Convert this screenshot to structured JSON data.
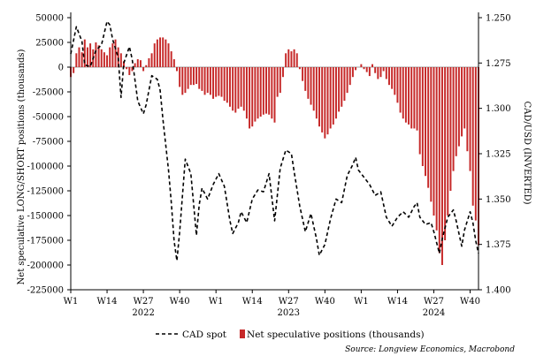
{
  "chart_data": {
    "type": "bar+line",
    "y_left": {
      "label": "Net speculative LONG/SHORT positions (thousands)",
      "ticks": [
        50000,
        25000,
        0,
        -25000,
        -50000,
        -75000,
        -100000,
        -125000,
        -150000,
        -175000,
        -200000,
        -225000
      ],
      "tick_labels": [
        "50000",
        "25000",
        "0",
        "-25000",
        "-50000",
        "-75000",
        "-100000",
        "-125000",
        "-150000",
        "-175000",
        "-200000",
        "-225000"
      ],
      "range": [
        -225000,
        50000
      ]
    },
    "y_right": {
      "label": "CAD/USD (INVERTED)",
      "inverted": true,
      "ticks": [
        1.25,
        1.275,
        1.3,
        1.325,
        1.35,
        1.375,
        1.4
      ],
      "tick_labels": [
        "1.250",
        "1.275",
        "1.300",
        "1.325",
        "1.350",
        "1.375",
        "1.400"
      ],
      "range": [
        1.25,
        1.4
      ]
    },
    "x_axis": {
      "week_range": [
        1,
        147
      ],
      "ticks": [
        {
          "week": 1,
          "label": "W1"
        },
        {
          "week": 14,
          "label": "W14"
        },
        {
          "week": 27,
          "label": "W27"
        },
        {
          "week": 40,
          "label": "W40"
        },
        {
          "week": 53,
          "label": "W1"
        },
        {
          "week": 66,
          "label": "W14"
        },
        {
          "week": 79,
          "label": "W27"
        },
        {
          "week": 92,
          "label": "W40"
        },
        {
          "week": 105,
          "label": "W1"
        },
        {
          "week": 118,
          "label": "W14"
        },
        {
          "week": 131,
          "label": "W27"
        },
        {
          "week": 144,
          "label": "W40"
        }
      ],
      "years": [
        {
          "week": 27,
          "label": "2022"
        },
        {
          "week": 79,
          "label": "2023"
        },
        {
          "week": 131,
          "label": "2024"
        }
      ]
    },
    "series": [
      {
        "name": "CAD spot",
        "type": "line",
        "axis": "right",
        "style": "dashed",
        "color": "#000000",
        "points": [
          [
            1,
            1.27
          ],
          [
            3,
            1.255
          ],
          [
            5,
            1.263
          ],
          [
            6,
            1.276
          ],
          [
            8,
            1.277
          ],
          [
            10,
            1.268
          ],
          [
            12,
            1.265
          ],
          [
            14,
            1.252
          ],
          [
            15,
            1.254
          ],
          [
            16,
            1.262
          ],
          [
            18,
            1.272
          ],
          [
            19,
            1.294
          ],
          [
            20,
            1.275
          ],
          [
            22,
            1.266
          ],
          [
            23,
            1.273
          ],
          [
            25,
            1.296
          ],
          [
            27,
            1.303
          ],
          [
            28,
            1.298
          ],
          [
            30,
            1.282
          ],
          [
            32,
            1.284
          ],
          [
            33,
            1.29
          ],
          [
            34,
            1.306
          ],
          [
            36,
            1.334
          ],
          [
            37,
            1.352
          ],
          [
            38,
            1.373
          ],
          [
            39,
            1.384
          ],
          [
            40,
            1.368
          ],
          [
            42,
            1.328
          ],
          [
            44,
            1.336
          ],
          [
            46,
            1.37
          ],
          [
            47,
            1.353
          ],
          [
            48,
            1.344
          ],
          [
            50,
            1.35
          ],
          [
            52,
            1.342
          ],
          [
            54,
            1.336
          ],
          [
            56,
            1.343
          ],
          [
            58,
            1.362
          ],
          [
            59,
            1.369
          ],
          [
            61,
            1.363
          ],
          [
            62,
            1.357
          ],
          [
            64,
            1.363
          ],
          [
            66,
            1.35
          ],
          [
            68,
            1.345
          ],
          [
            70,
            1.346
          ],
          [
            72,
            1.336
          ],
          [
            74,
            1.362
          ],
          [
            76,
            1.333
          ],
          [
            78,
            1.323
          ],
          [
            80,
            1.325
          ],
          [
            81,
            1.335
          ],
          [
            83,
            1.354
          ],
          [
            85,
            1.368
          ],
          [
            87,
            1.358
          ],
          [
            89,
            1.372
          ],
          [
            90,
            1.381
          ],
          [
            92,
            1.375
          ],
          [
            94,
            1.361
          ],
          [
            96,
            1.35
          ],
          [
            98,
            1.352
          ],
          [
            100,
            1.337
          ],
          [
            102,
            1.331
          ],
          [
            103,
            1.327
          ],
          [
            104,
            1.334
          ],
          [
            106,
            1.338
          ],
          [
            108,
            1.342
          ],
          [
            110,
            1.348
          ],
          [
            112,
            1.346
          ],
          [
            114,
            1.36
          ],
          [
            116,
            1.365
          ],
          [
            118,
            1.36
          ],
          [
            120,
            1.357
          ],
          [
            122,
            1.36
          ],
          [
            124,
            1.354
          ],
          [
            125,
            1.352
          ],
          [
            126,
            1.36
          ],
          [
            128,
            1.364
          ],
          [
            130,
            1.363
          ],
          [
            131,
            1.368
          ],
          [
            133,
            1.38
          ],
          [
            134,
            1.372
          ],
          [
            136,
            1.36
          ],
          [
            138,
            1.356
          ],
          [
            139,
            1.362
          ],
          [
            141,
            1.376
          ],
          [
            142,
            1.367
          ],
          [
            144,
            1.357
          ],
          [
            145,
            1.363
          ],
          [
            146,
            1.373
          ],
          [
            147,
            1.38
          ]
        ]
      },
      {
        "name": "Net speculative positions (thousands)",
        "type": "bar",
        "axis": "left",
        "color": "#c62828",
        "points": [
          [
            1,
            -10000
          ],
          [
            2,
            -6000
          ],
          [
            3,
            14000
          ],
          [
            4,
            20000
          ],
          [
            5,
            15000
          ],
          [
            6,
            28000
          ],
          [
            7,
            20000
          ],
          [
            8,
            24000
          ],
          [
            9,
            18000
          ],
          [
            10,
            25000
          ],
          [
            11,
            22000
          ],
          [
            12,
            18000
          ],
          [
            13,
            15000
          ],
          [
            14,
            12000
          ],
          [
            15,
            20000
          ],
          [
            16,
            24000
          ],
          [
            17,
            28000
          ],
          [
            18,
            20000
          ],
          [
            19,
            14000
          ],
          [
            20,
            6000
          ],
          [
            21,
            -2000
          ],
          [
            22,
            -8000
          ],
          [
            23,
            -4000
          ],
          [
            24,
            4000
          ],
          [
            25,
            8000
          ],
          [
            26,
            7000
          ],
          [
            27,
            -4000
          ],
          [
            28,
            2000
          ],
          [
            29,
            9000
          ],
          [
            30,
            14000
          ],
          [
            31,
            24000
          ],
          [
            32,
            28000
          ],
          [
            33,
            30000
          ],
          [
            34,
            30000
          ],
          [
            35,
            28000
          ],
          [
            36,
            24000
          ],
          [
            37,
            16000
          ],
          [
            38,
            8000
          ],
          [
            39,
            -4000
          ],
          [
            40,
            -20000
          ],
          [
            41,
            -28000
          ],
          [
            42,
            -26000
          ],
          [
            43,
            -22000
          ],
          [
            44,
            -18000
          ],
          [
            45,
            -18000
          ],
          [
            46,
            -17000
          ],
          [
            47,
            -22000
          ],
          [
            48,
            -24000
          ],
          [
            49,
            -28000
          ],
          [
            50,
            -26000
          ],
          [
            51,
            -28000
          ],
          [
            52,
            -32000
          ],
          [
            53,
            -30000
          ],
          [
            54,
            -29000
          ],
          [
            55,
            -30000
          ],
          [
            56,
            -34000
          ],
          [
            57,
            -36000
          ],
          [
            58,
            -40000
          ],
          [
            59,
            -44000
          ],
          [
            60,
            -46000
          ],
          [
            61,
            -42000
          ],
          [
            62,
            -40000
          ],
          [
            63,
            -44000
          ],
          [
            64,
            -52000
          ],
          [
            65,
            -62000
          ],
          [
            66,
            -60000
          ],
          [
            67,
            -55000
          ],
          [
            68,
            -52000
          ],
          [
            69,
            -50000
          ],
          [
            70,
            -48000
          ],
          [
            71,
            -47000
          ],
          [
            72,
            -48000
          ],
          [
            73,
            -52000
          ],
          [
            74,
            -56000
          ],
          [
            75,
            -30000
          ],
          [
            76,
            -26000
          ],
          [
            77,
            -10000
          ],
          [
            78,
            14000
          ],
          [
            79,
            18000
          ],
          [
            80,
            16000
          ],
          [
            81,
            18000
          ],
          [
            82,
            14000
          ],
          [
            83,
            -2000
          ],
          [
            84,
            -14000
          ],
          [
            85,
            -24000
          ],
          [
            86,
            -32000
          ],
          [
            87,
            -38000
          ],
          [
            88,
            -44000
          ],
          [
            89,
            -52000
          ],
          [
            90,
            -60000
          ],
          [
            91,
            -66000
          ],
          [
            92,
            -72000
          ],
          [
            93,
            -68000
          ],
          [
            94,
            -62000
          ],
          [
            95,
            -58000
          ],
          [
            96,
            -52000
          ],
          [
            97,
            -45000
          ],
          [
            98,
            -40000
          ],
          [
            99,
            -34000
          ],
          [
            100,
            -26000
          ],
          [
            101,
            -18000
          ],
          [
            102,
            -10000
          ],
          [
            103,
            -3000
          ],
          [
            104,
            0
          ],
          [
            105,
            3000
          ],
          [
            106,
            -2000
          ],
          [
            107,
            -5000
          ],
          [
            108,
            -9000
          ],
          [
            109,
            3000
          ],
          [
            110,
            -6000
          ],
          [
            111,
            -12000
          ],
          [
            112,
            -10000
          ],
          [
            113,
            -4000
          ],
          [
            114,
            -12000
          ],
          [
            115,
            -18000
          ],
          [
            116,
            -22000
          ],
          [
            117,
            -28000
          ],
          [
            118,
            -36000
          ],
          [
            119,
            -46000
          ],
          [
            120,
            -52000
          ],
          [
            121,
            -56000
          ],
          [
            122,
            -58000
          ],
          [
            123,
            -62000
          ],
          [
            124,
            -62000
          ],
          [
            125,
            -64000
          ],
          [
            126,
            -88000
          ],
          [
            127,
            -100000
          ],
          [
            128,
            -110000
          ],
          [
            129,
            -122000
          ],
          [
            130,
            -136000
          ],
          [
            131,
            -150000
          ],
          [
            132,
            -165000
          ],
          [
            133,
            -188000
          ],
          [
            134,
            -200000
          ],
          [
            135,
            -175000
          ],
          [
            136,
            -150000
          ],
          [
            137,
            -125000
          ],
          [
            138,
            -105000
          ],
          [
            139,
            -90000
          ],
          [
            140,
            -80000
          ],
          [
            141,
            -70000
          ],
          [
            142,
            -62000
          ],
          [
            143,
            -85000
          ],
          [
            144,
            -105000
          ],
          [
            145,
            -140000
          ],
          [
            146,
            -155000
          ],
          [
            147,
            -180000
          ]
        ]
      }
    ],
    "source": "Source: Longview Economics, Macrobond",
    "grid": false,
    "legend_position": "bottom"
  }
}
